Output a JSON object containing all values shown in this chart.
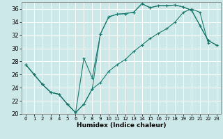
{
  "xlabel": "Humidex (Indice chaleur)",
  "bg_color": "#cce8e8",
  "grid_color": "#ffffff",
  "line_color": "#1a7a6e",
  "xlim": [
    -0.5,
    23.5
  ],
  "ylim": [
    20,
    37
  ],
  "xticks": [
    0,
    1,
    2,
    3,
    4,
    5,
    6,
    7,
    8,
    9,
    10,
    11,
    12,
    13,
    14,
    15,
    16,
    17,
    18,
    19,
    20,
    21,
    22,
    23
  ],
  "yticks": [
    20,
    22,
    24,
    26,
    28,
    30,
    32,
    34,
    36
  ],
  "line1_x": [
    0,
    1,
    2,
    3,
    4,
    5,
    6,
    7,
    8,
    9,
    10,
    11,
    12,
    13,
    14,
    15,
    16,
    17,
    18,
    19,
    20,
    21,
    22,
    23
  ],
  "line1_y": [
    27.5,
    26.0,
    24.5,
    23.3,
    23.0,
    21.5,
    20.2,
    28.5,
    25.5,
    32.2,
    34.8,
    35.2,
    35.3,
    35.5,
    36.8,
    36.2,
    36.5,
    36.5,
    36.6,
    36.3,
    35.8,
    33.5,
    31.2,
    30.5
  ],
  "line2_x": [
    0,
    1,
    2,
    3,
    4,
    5,
    6,
    7,
    8,
    9,
    10,
    11,
    12,
    13,
    14,
    15,
    16,
    17,
    18,
    19,
    20,
    21,
    22,
    23
  ],
  "line2_y": [
    27.5,
    26.0,
    24.5,
    23.3,
    23.0,
    21.5,
    20.2,
    21.5,
    23.8,
    24.8,
    26.5,
    27.5,
    28.3,
    29.5,
    30.5,
    31.5,
    32.3,
    33.0,
    34.0,
    35.5,
    36.0,
    35.5,
    30.8,
    null
  ],
  "line3_x": [
    0,
    1,
    2,
    3,
    4,
    5,
    6,
    7,
    8,
    9,
    10,
    11,
    12,
    13,
    14,
    15,
    16,
    17,
    18,
    19,
    20,
    21,
    22,
    23
  ],
  "line3_y": [
    27.5,
    26.0,
    24.5,
    23.3,
    23.0,
    21.5,
    20.2,
    21.5,
    23.8,
    32.2,
    34.8,
    35.2,
    35.3,
    35.5,
    36.8,
    36.2,
    36.5,
    36.5,
    36.6,
    36.3,
    35.8,
    33.5,
    31.2,
    30.5
  ]
}
